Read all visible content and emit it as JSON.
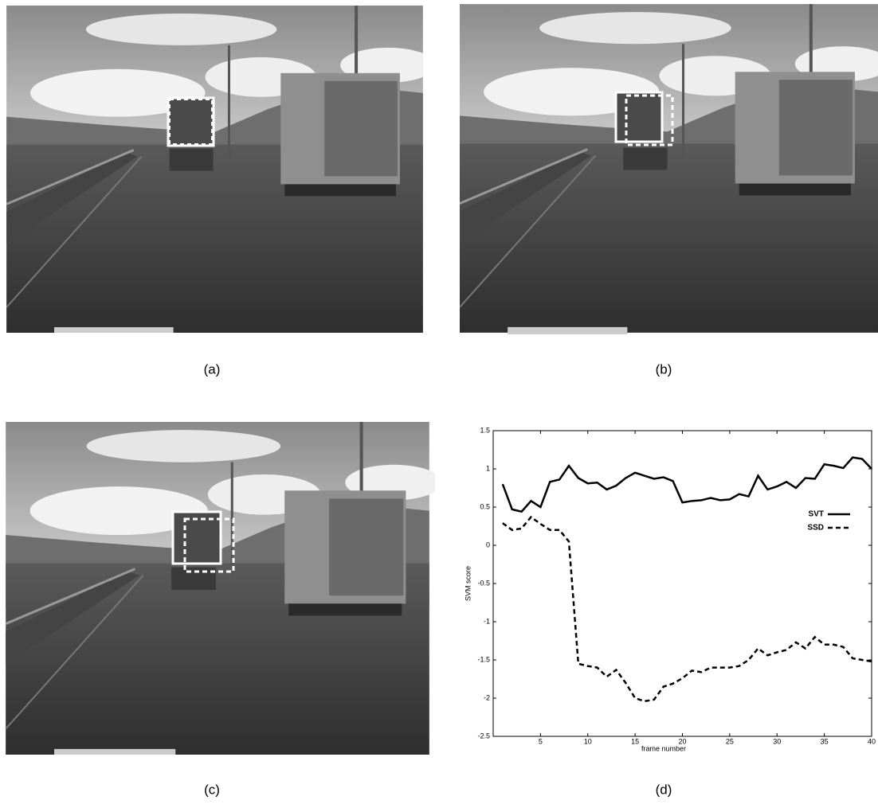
{
  "captions": [
    "(a)",
    "(b)",
    "(c)",
    "(d)"
  ],
  "chart_data": {
    "type": "line",
    "xlabel": "frame number",
    "ylabel": "SVM score",
    "x": [
      1,
      2,
      3,
      4,
      5,
      6,
      7,
      8,
      9,
      10,
      11,
      12,
      13,
      14,
      15,
      16,
      17,
      18,
      19,
      20,
      21,
      22,
      23,
      24,
      25,
      26,
      27,
      28,
      29,
      30,
      31,
      32,
      33,
      34,
      35,
      36,
      37,
      38,
      39,
      40
    ],
    "series": [
      {
        "name": "SVT",
        "color": "#000000",
        "style": "solid",
        "values": [
          0.8,
          0.47,
          0.44,
          0.58,
          0.5,
          0.83,
          0.86,
          1.04,
          0.88,
          0.81,
          0.82,
          0.73,
          0.78,
          0.88,
          0.95,
          0.91,
          0.87,
          0.89,
          0.84,
          0.56,
          0.58,
          0.59,
          0.62,
          0.59,
          0.6,
          0.67,
          0.64,
          0.91,
          0.73,
          0.77,
          0.83,
          0.75,
          0.88,
          0.87,
          1.06,
          1.04,
          1.01,
          1.15,
          1.13,
          1.0
        ]
      },
      {
        "name": "SSD",
        "color": "#000000",
        "style": "dashed",
        "values": [
          0.29,
          0.2,
          0.22,
          0.37,
          0.28,
          0.2,
          0.2,
          0.05,
          -1.55,
          -1.58,
          -1.6,
          -1.72,
          -1.63,
          -1.8,
          -2.0,
          -2.04,
          -2.02,
          -1.85,
          -1.81,
          -1.74,
          -1.64,
          -1.66,
          -1.6,
          -1.6,
          -1.6,
          -1.58,
          -1.5,
          -1.35,
          -1.44,
          -1.4,
          -1.37,
          -1.27,
          -1.35,
          -1.2,
          -1.3,
          -1.3,
          -1.33,
          -1.48,
          -1.5,
          -1.52
        ]
      }
    ],
    "xlim": [
      0,
      40
    ],
    "xticks": [
      5,
      10,
      15,
      20,
      25,
      30,
      35,
      40
    ],
    "ylim": [
      -2.5,
      1.5
    ],
    "yticks": [
      -2.5,
      -2,
      -1.5,
      -1,
      -0.5,
      0,
      0.5,
      1,
      1.5
    ],
    "legend": "upper right"
  }
}
